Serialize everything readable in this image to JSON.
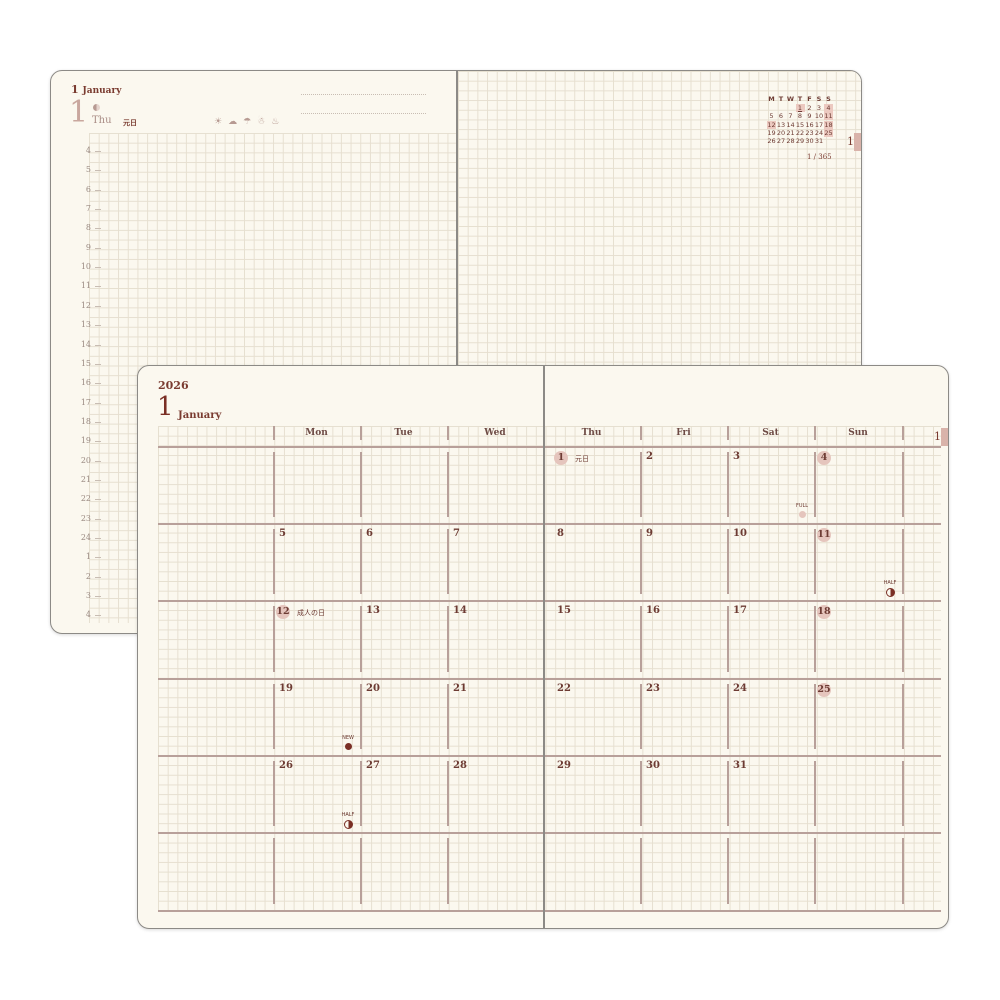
{
  "back_book": {
    "daily_page": {
      "month_number": "1",
      "month_name": "January",
      "day_number": "1",
      "weekday": "Thu",
      "holiday": "元日",
      "moon_icon": "waxing-moon-icon",
      "weather_icons": [
        "sun-icon",
        "cloud-icon",
        "umbrella-icon",
        "snow-cloud-icon",
        "gourd-icon"
      ],
      "hours": [
        "4",
        "5",
        "6",
        "7",
        "8",
        "9",
        "10",
        "11",
        "12",
        "13",
        "14",
        "15",
        "16",
        "17",
        "18",
        "19",
        "20",
        "21",
        "22",
        "23",
        "24",
        "1",
        "2",
        "3",
        "4"
      ]
    },
    "notes_page": {
      "mini_calendar": {
        "headers": [
          "M",
          "T",
          "W",
          "T",
          "F",
          "S",
          "S"
        ],
        "weeks": [
          [
            null,
            null,
            null,
            1,
            2,
            3,
            4
          ],
          [
            5,
            6,
            7,
            8,
            9,
            10,
            11
          ],
          [
            12,
            13,
            14,
            15,
            16,
            17,
            18
          ],
          [
            19,
            20,
            21,
            22,
            23,
            24,
            25
          ],
          [
            26,
            27,
            28,
            29,
            30,
            31,
            null
          ]
        ],
        "highlighted": [
          1,
          4,
          11,
          12,
          18,
          25
        ],
        "underlined": [
          1
        ]
      },
      "index_tab": "1",
      "day_count": "1 / 365"
    }
  },
  "front_book": {
    "year": "2026",
    "month_number": "1",
    "month_name": "January",
    "weekdays": [
      "Mon",
      "Tue",
      "Wed",
      "Thu",
      "Fri",
      "Sat",
      "Sun"
    ],
    "weeks": [
      [
        null,
        null,
        null,
        1,
        2,
        3,
        4
      ],
      [
        5,
        6,
        7,
        8,
        9,
        10,
        11
      ],
      [
        12,
        13,
        14,
        15,
        16,
        17,
        18
      ],
      [
        19,
        20,
        21,
        22,
        23,
        24,
        25
      ],
      [
        26,
        27,
        28,
        29,
        30,
        31,
        null
      ],
      [
        null,
        null,
        null,
        null,
        null,
        null,
        null
      ]
    ],
    "circled_days": [
      1,
      4,
      11,
      12,
      18,
      25
    ],
    "holidays": {
      "1": "元日",
      "12": "成人の日"
    },
    "moon_phases": [
      {
        "day": 3,
        "label": "FULL",
        "phase": "full"
      },
      {
        "day": 11,
        "label": "HALF",
        "phase": "half"
      },
      {
        "day": 19,
        "label": "NEW",
        "phase": "new"
      },
      {
        "day": 26,
        "label": "HALF",
        "phase": "half"
      }
    ],
    "index_tab": "1"
  },
  "colors": {
    "paper": "#fbf8ef",
    "ink": "#6d3b33",
    "accent": "#e5c5bd",
    "grid": "#e6dfd0"
  }
}
